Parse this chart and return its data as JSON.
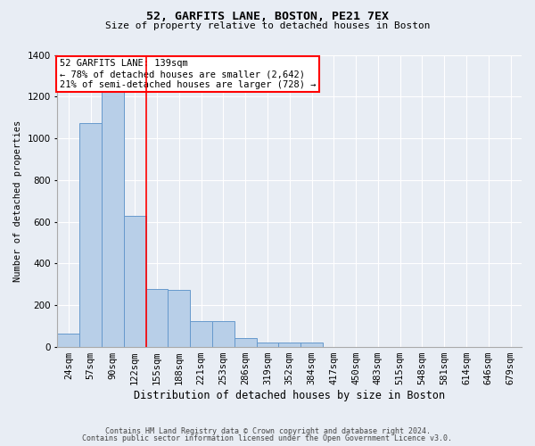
{
  "title1": "52, GARFITS LANE, BOSTON, PE21 7EX",
  "title2": "Size of property relative to detached houses in Boston",
  "xlabel": "Distribution of detached houses by size in Boston",
  "ylabel": "Number of detached properties",
  "categories": [
    "24sqm",
    "57sqm",
    "90sqm",
    "122sqm",
    "155sqm",
    "188sqm",
    "221sqm",
    "253sqm",
    "286sqm",
    "319sqm",
    "352sqm",
    "384sqm",
    "417sqm",
    "450sqm",
    "483sqm",
    "515sqm",
    "548sqm",
    "581sqm",
    "614sqm",
    "646sqm",
    "679sqm"
  ],
  "values": [
    65,
    1075,
    1240,
    630,
    280,
    275,
    125,
    125,
    42,
    20,
    20,
    20,
    0,
    0,
    0,
    0,
    0,
    0,
    0,
    0,
    0
  ],
  "bar_color": "#b8cfe8",
  "bar_edge_color": "#6699cc",
  "vline_color": "red",
  "vline_x": 3.5,
  "annotation_text": "52 GARFITS LANE: 139sqm\n← 78% of detached houses are smaller (2,642)\n21% of semi-detached houses are larger (728) →",
  "footnote1": "Contains HM Land Registry data © Crown copyright and database right 2024.",
  "footnote2": "Contains public sector information licensed under the Open Government Licence v3.0.",
  "ylim": [
    0,
    1400
  ],
  "yticks": [
    0,
    200,
    400,
    600,
    800,
    1000,
    1200,
    1400
  ],
  "background_color": "#e8edf4",
  "grid_color": "white",
  "title1_fontsize": 9.5,
  "title2_fontsize": 8.0,
  "ylabel_fontsize": 7.5,
  "xlabel_fontsize": 8.5,
  "tick_fontsize": 7.5,
  "annot_fontsize": 7.5,
  "footnote_fontsize": 6.0
}
